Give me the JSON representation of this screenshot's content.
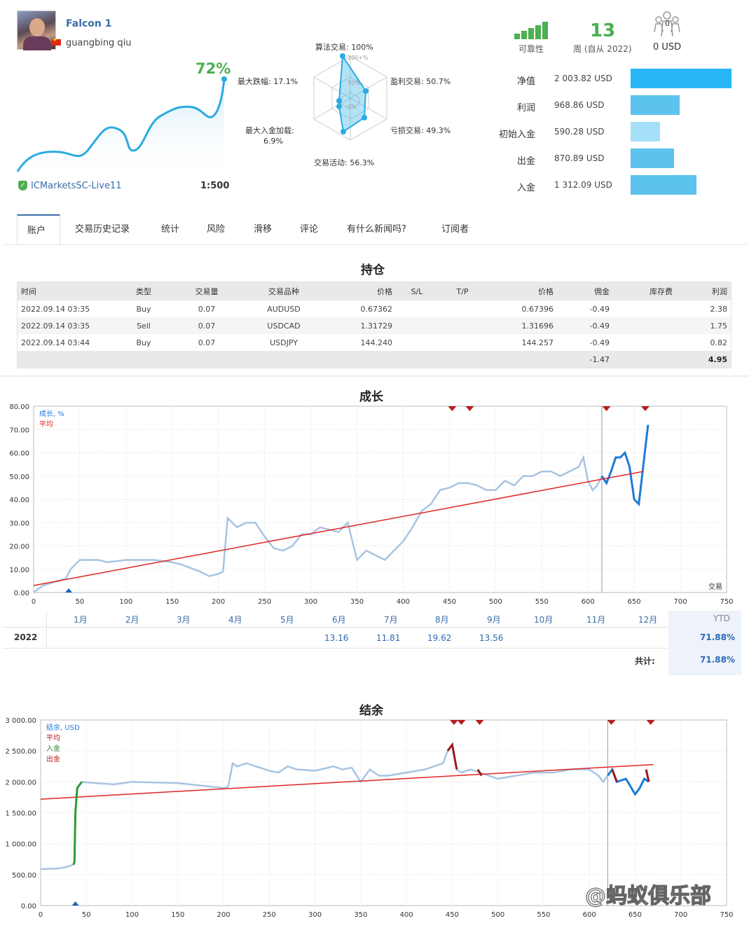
{
  "profile": {
    "name": "Falcon 1",
    "author": "guangbing qiu",
    "growth": "72%",
    "broker": "ICMarketsSC-Live11",
    "leverage": "1:500"
  },
  "radar": {
    "algo": "算法交易: 100%",
    "profit_trades": "盈利交易: 50.7%",
    "loss_trades": "亏损交易: 49.3%",
    "activity": "交易活动: 56.3%",
    "max_deposit_load_label": "最大入金加载:",
    "max_deposit_load_value": "6.9%",
    "max_drawdown": "最大跌幅: 17.1%",
    "tick_100": "100+%",
    "tick_50": "50%",
    "tick_0": "0%"
  },
  "summary": {
    "reliability_label": "可靠性",
    "weeks_value": "13",
    "weeks_label": "周 (自从 2022)",
    "subscribers_count": "0",
    "subscribers_value": "0 USD"
  },
  "stats": [
    {
      "label": "净值",
      "value": "2 003.82 USD",
      "fill": 1.0,
      "color": "#29b6f6"
    },
    {
      "label": "利润",
      "value": "968.86 USD",
      "fill": 0.483,
      "color": "#5cc3ee"
    },
    {
      "label": "初始入金",
      "value": "590.28 USD",
      "fill": 0.294,
      "color": "#a6e0f8"
    },
    {
      "label": "出金",
      "value": "870.89 USD",
      "fill": 0.434,
      "color": "#5cc3ee"
    },
    {
      "label": "入金",
      "value": "1 312.09 USD",
      "fill": 0.655,
      "color": "#5cc3ee"
    }
  ],
  "tabs": [
    "账户",
    "交易历史记录",
    "统计",
    "风险",
    "滑移",
    "评论",
    "有什么新闻吗?",
    "订阅者"
  ],
  "positions": {
    "title": "持仓",
    "headers": [
      "时间",
      "类型",
      "交易量",
      "交易品种",
      "价格",
      "S/L",
      "T/P",
      "价格",
      "佣金",
      "库存费",
      "利润"
    ],
    "rows": [
      [
        "2022.09.14 03:35",
        "Buy",
        "0.07",
        "AUDUSD",
        "0.67362",
        "",
        "",
        "0.67396",
        "-0.49",
        "",
        "2.38"
      ],
      [
        "2022.09.14 03:35",
        "Sell",
        "0.07",
        "USDCAD",
        "1.31729",
        "",
        "",
        "1.31696",
        "-0.49",
        "",
        "1.75"
      ],
      [
        "2022.09.14 03:44",
        "Buy",
        "0.07",
        "USDJPY",
        "144.240",
        "",
        "",
        "144.257",
        "-0.49",
        "",
        "0.82"
      ]
    ],
    "total_commission": "-1.47",
    "total_profit": "4.95"
  },
  "growth_chart": {
    "title": "成长",
    "legend_series": "成长, %",
    "legend_avg": "平均",
    "x_axis_label": "交易",
    "y_ticks": [
      "80.00",
      "70.00",
      "60.00",
      "50.00",
      "40.00",
      "30.00",
      "20.00",
      "10.00",
      "0.00"
    ],
    "x_ticks": [
      "0",
      "50",
      "100",
      "150",
      "200",
      "250",
      "300",
      "350",
      "400",
      "450",
      "500",
      "550",
      "600",
      "650",
      "700",
      "750"
    ]
  },
  "monthly": {
    "months": [
      "1月",
      "2月",
      "3月",
      "4月",
      "5月",
      "6月",
      "7月",
      "8月",
      "9月",
      "10月",
      "11月",
      "12月"
    ],
    "ytd_label": "YTD",
    "year": "2022",
    "values": {
      "jun": "13.16",
      "jul": "11.81",
      "aug": "19.62",
      "sep": "13.56"
    },
    "ytd": "71.88%",
    "total_label": "共计:",
    "total": "71.88%"
  },
  "balance_chart": {
    "title": "结余",
    "legend_series": "结余, USD",
    "legend_avg": "平均",
    "legend_deposit": "入金",
    "legend_withdraw": "出金",
    "y_ticks": [
      "3 000.00",
      "2 500.00",
      "2 000.00",
      "1 500.00",
      "1 000.00",
      "500.00",
      "0.00"
    ],
    "x_ticks": [
      "0",
      "50",
      "100",
      "150",
      "200",
      "250",
      "300",
      "350",
      "400",
      "450",
      "500",
      "550",
      "600",
      "650",
      "700",
      "750"
    ]
  },
  "watermark": "@蚂蚁俱乐部",
  "chart_data": [
    {
      "type": "line",
      "title": "成长",
      "xlabel": "交易",
      "ylabel": "",
      "xlim": [
        0,
        750
      ],
      "ylim": [
        0,
        80
      ],
      "series": [
        {
          "name": "成长, %",
          "x": [
            0,
            10,
            35,
            40,
            50,
            70,
            80,
            100,
            130,
            150,
            160,
            180,
            190,
            200,
            205,
            210,
            220,
            230,
            240,
            250,
            260,
            270,
            280,
            290,
            300,
            310,
            320,
            330,
            340,
            350,
            360,
            370,
            380,
            390,
            400,
            410,
            420,
            430,
            440,
            450,
            460,
            470,
            480,
            490,
            500,
            510,
            520,
            530,
            540,
            550,
            560,
            570,
            580,
            590,
            595,
            600,
            605,
            610,
            615,
            620,
            625,
            630,
            635,
            640,
            645,
            650,
            655,
            660,
            665
          ],
          "y": [
            0,
            3,
            6,
            10,
            14,
            14,
            13,
            14,
            14,
            13,
            12,
            9,
            7,
            8,
            9,
            32,
            28,
            30,
            30,
            24,
            19,
            18,
            20,
            25,
            25,
            28,
            27,
            26,
            30,
            14,
            18,
            16,
            14,
            18,
            22,
            28,
            35,
            38,
            44,
            45,
            47,
            47,
            46,
            44,
            44,
            48,
            46,
            50,
            50,
            52,
            52,
            50,
            52,
            54,
            58,
            48,
            44,
            46,
            50,
            47,
            52,
            58,
            58,
            60,
            54,
            40,
            38,
            55,
            72
          ]
        },
        {
          "name": "平均",
          "x": [
            0,
            660
          ],
          "y": [
            3,
            52
          ]
        }
      ]
    },
    {
      "type": "line",
      "title": "结余",
      "xlabel": "",
      "ylabel": "",
      "xlim": [
        0,
        750
      ],
      "ylim": [
        0,
        3000
      ],
      "series": [
        {
          "name": "结余, USD",
          "x": [
            0,
            20,
            30,
            35,
            37,
            38,
            40,
            45,
            60,
            80,
            100,
            150,
            200,
            205,
            210,
            215,
            225,
            250,
            260,
            270,
            280,
            300,
            320,
            330,
            340,
            350,
            360,
            370,
            380,
            400,
            420,
            440,
            445,
            450,
            455,
            460,
            470,
            480,
            490,
            500,
            520,
            540,
            560,
            580,
            600,
            610,
            615,
            620,
            625,
            630,
            640,
            650,
            655,
            660,
            665
          ],
          "y": [
            590,
            600,
            630,
            660,
            700,
            1500,
            1900,
            2000,
            1980,
            1960,
            2000,
            1980,
            1900,
            1920,
            2300,
            2250,
            2300,
            2180,
            2150,
            2250,
            2200,
            2180,
            2250,
            2200,
            2230,
            2000,
            2200,
            2100,
            2100,
            2150,
            2200,
            2300,
            2500,
            2600,
            2200,
            2150,
            2200,
            2150,
            2100,
            2050,
            2100,
            2150,
            2150,
            2200,
            2200,
            2100,
            2000,
            2100,
            2200,
            2000,
            2050,
            1800,
            1900,
            2050,
            2003
          ]
        },
        {
          "name": "平均",
          "x": [
            0,
            670
          ],
          "y": [
            1720,
            2280
          ]
        }
      ]
    }
  ]
}
